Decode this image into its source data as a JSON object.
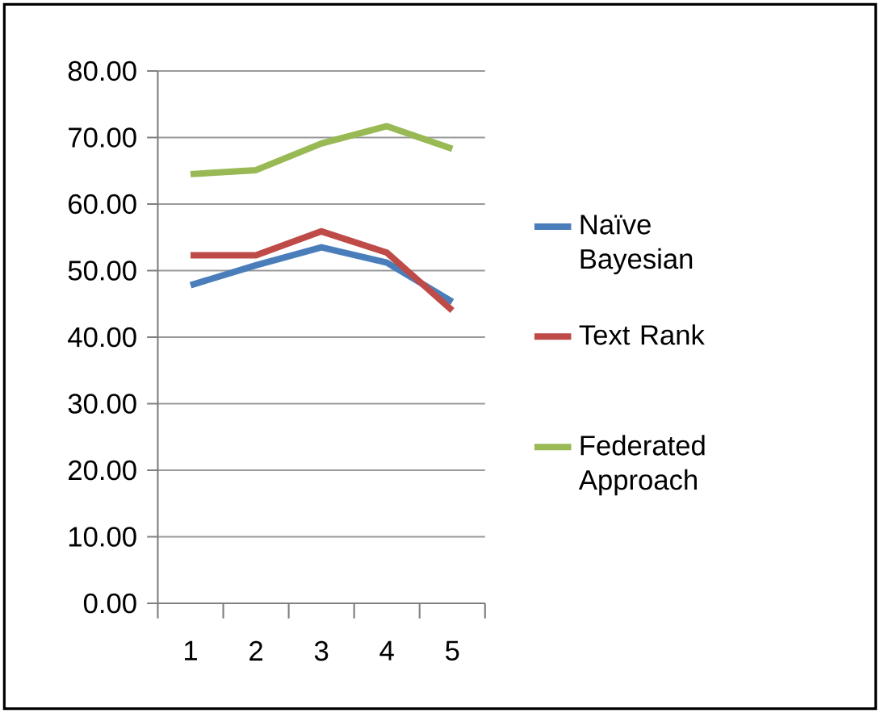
{
  "chart_data": {
    "type": "line",
    "categories": [
      "1",
      "2",
      "3",
      "4",
      "5"
    ],
    "series": [
      {
        "name": "Naïve Bayesian",
        "color": "#4a7ebb",
        "values": [
          47.8,
          50.8,
          53.5,
          51.2,
          45.3
        ]
      },
      {
        "name": "Text Rank",
        "color": "#be4b48",
        "values": [
          52.3,
          52.3,
          55.9,
          52.7,
          44.0
        ]
      },
      {
        "name": "Federated Approach",
        "color": "#98b954",
        "values": [
          64.5,
          65.1,
          69.1,
          71.7,
          68.3
        ]
      }
    ],
    "ylim": [
      0,
      80
    ],
    "yticks": [
      {
        "value": 0,
        "label": "0.00"
      },
      {
        "value": 10,
        "label": "10.00"
      },
      {
        "value": 20,
        "label": "20.00"
      },
      {
        "value": 30,
        "label": "30.00"
      },
      {
        "value": 40,
        "label": "40.00"
      },
      {
        "value": 50,
        "label": "50.00"
      },
      {
        "value": 60,
        "label": "60.00"
      },
      {
        "value": 70,
        "label": "70.00"
      },
      {
        "value": 80,
        "label": "80.00"
      }
    ],
    "grid": "y",
    "legend": "right",
    "marker": "none",
    "line_style": "solid"
  }
}
